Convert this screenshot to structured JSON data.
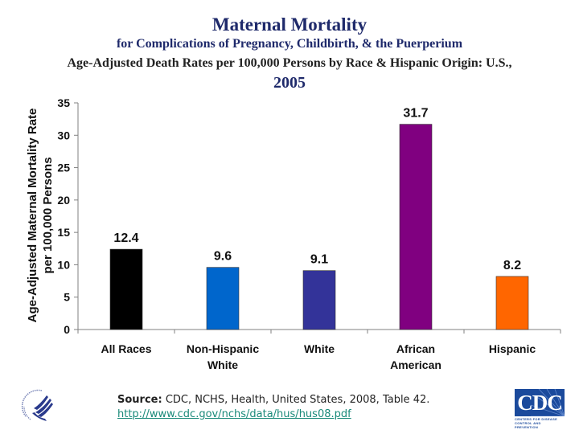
{
  "header": {
    "title": "Maternal Mortality",
    "subtitle": "for Complications of Pregnancy, Childbirth, & the Puerperium",
    "subtitle2": "Age-Adjusted Death Rates per 100,000 Persons by Race & Hispanic Origin: U.S.,",
    "year": "2005"
  },
  "chart_data": {
    "type": "bar",
    "title": "Maternal Mortality for Complications of Pregnancy, Childbirth, & the Puerperium — Age-Adjusted Death Rates per 100,000 Persons by Race & Hispanic Origin: U.S., 2005",
    "xlabel": "",
    "ylabel": "Age-Adjusted Maternal Mortality Rate per 100,000 Persons",
    "ylabel_lines": [
      "Age-Adjusted Maternal Mortality Rate",
      "per 100,000 Persons"
    ],
    "categories": [
      "All Races",
      "Non-Hispanic White",
      "White",
      "African American",
      "Hispanic"
    ],
    "category_lines": [
      [
        "All Races"
      ],
      [
        "Non-Hispanic",
        "White"
      ],
      [
        "White"
      ],
      [
        "African",
        "American"
      ],
      [
        "Hispanic"
      ]
    ],
    "values": [
      12.4,
      9.6,
      9.1,
      31.7,
      8.2
    ],
    "value_labels": [
      "12.4",
      "9.6",
      "9.1",
      "31.7",
      "8.2"
    ],
    "colors": [
      "#000000",
      "#0066cc",
      "#333399",
      "#800080",
      "#ff6600"
    ],
    "ylim": [
      0,
      35
    ],
    "yticks": [
      0,
      5,
      10,
      15,
      20,
      25,
      30,
      35
    ],
    "grid": false,
    "legend": "none"
  },
  "footer": {
    "source_label": "Source:",
    "source_text": " CDC, NCHS, Health, United States, 2008, Table 42.",
    "link": "http://www.cdc.gov/nchs/data/hus/hus08.pdf",
    "left_logo": "hhs-eagle-seal-icon",
    "right_logo_text": "CDC",
    "right_logo_subtext": "CENTERS FOR DISEASE CONTROL AND PREVENTION"
  }
}
